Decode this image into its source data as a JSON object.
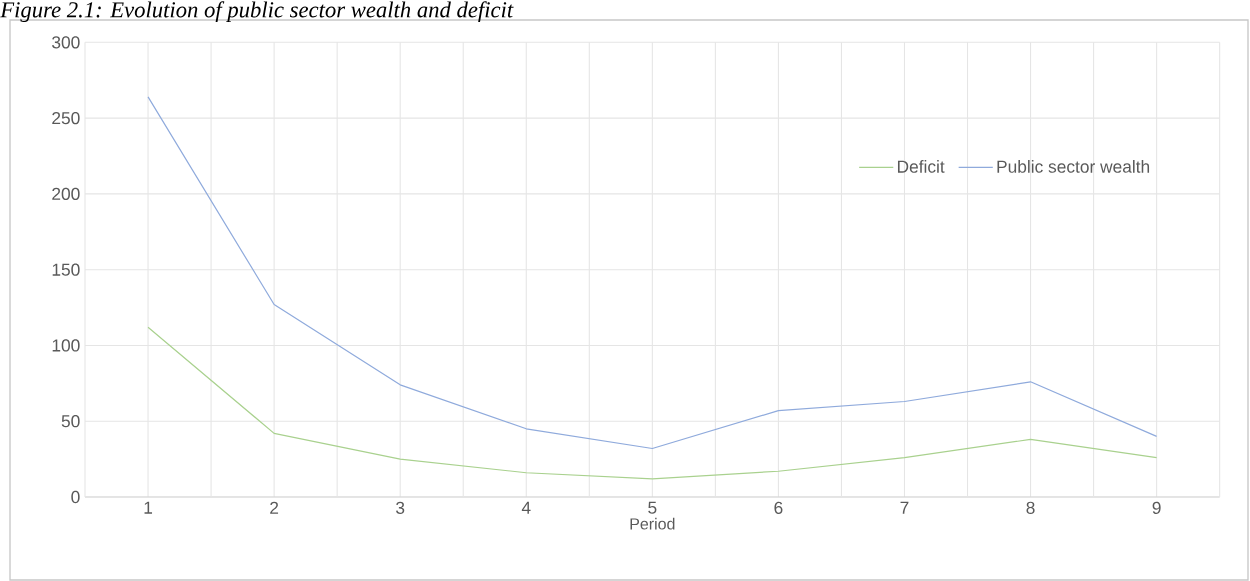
{
  "chart_data": {
    "type": "line",
    "title": "Figure 2.1: Evolution of public sector wealth and deficit",
    "xlabel": "Period",
    "categories": [
      "1",
      "2",
      "3",
      "4",
      "5",
      "6",
      "7",
      "8",
      "9"
    ],
    "series": [
      {
        "name": "Deficit",
        "color": "#a9d18e",
        "values": [
          112,
          42,
          25,
          16,
          12,
          17,
          26,
          38,
          26
        ]
      },
      {
        "name": "Public sector wealth",
        "color": "#8faadc",
        "values": [
          264,
          127,
          74,
          45,
          32,
          57,
          63,
          76,
          40
        ]
      }
    ],
    "ylim": [
      0,
      300
    ],
    "yticks": [
      0,
      50,
      100,
      150,
      200,
      250,
      300
    ],
    "grid": true,
    "legend": "right",
    "marker": "none",
    "line_style": "solid"
  }
}
